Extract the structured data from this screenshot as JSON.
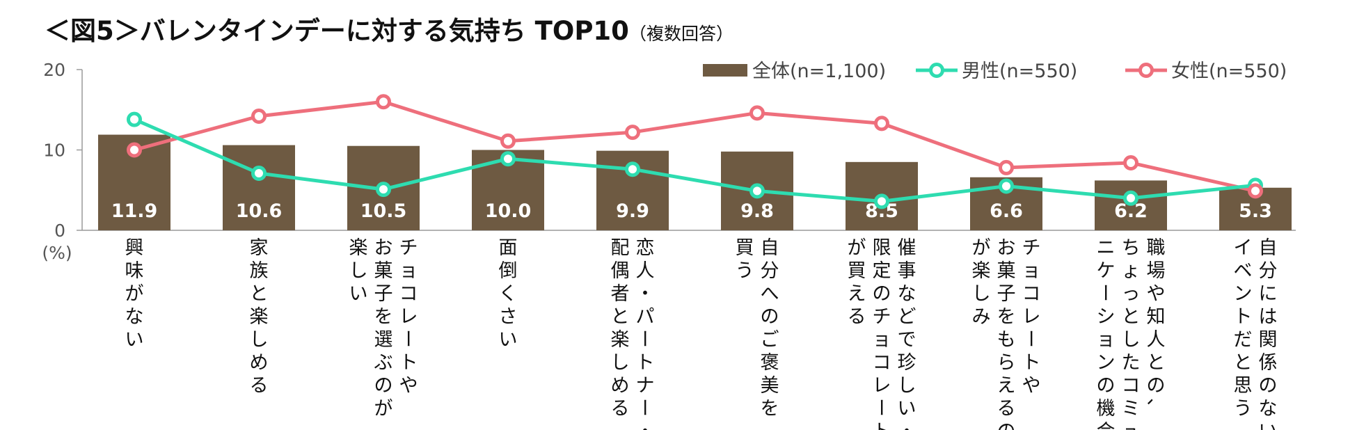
{
  "chart_data": {
    "type": "bar",
    "title": "＜図5＞バレンタインデーに対する気持ち TOP10",
    "subtitle": "（複数回答）",
    "ylabel": "(%)",
    "ylim": [
      0,
      20
    ],
    "yticks": [
      "0",
      "10",
      "20"
    ],
    "categories": [
      "興味がない",
      "家族と楽しめる",
      "チョコレートやお菓子を選ぶのが楽しい",
      "面倒くさい",
      "恋人・パートナー・配偶者と楽しめる",
      "自分へのご褒美を買う",
      "催事などで珍しい・限定のチョコレートが買える",
      "チョコレートやお菓子をもらえるのが楽しみ",
      "職場や知人との、ちょっとしたコミュニケーションの機会",
      "自分には関係のないイベントだと思う"
    ],
    "category_lines": [
      [
        "興味がない"
      ],
      [
        "家族と楽しめる"
      ],
      [
        "チョコレートや",
        "お菓子を選ぶのが",
        "楽しい"
      ],
      [
        "面倒くさい"
      ],
      [
        "恋人・パートナー・",
        "配偶者と楽しめる"
      ],
      [
        "自分へのご褒美を",
        "買う"
      ],
      [
        "催事などで珍しい・",
        "限定のチョコレート",
        "が買える"
      ],
      [
        "チョコレートや",
        "お菓子をもらえるの",
        "が楽しみ"
      ],
      [
        "職場や知人との、",
        "ちょっとしたコミュ",
        "ニケーションの機会"
      ],
      [
        "自分には関係のない",
        "イベントだと思う"
      ]
    ],
    "series": [
      {
        "name": "全体(n=1,100)",
        "kind": "bar",
        "color": "#6e5a42",
        "values": [
          11.9,
          10.6,
          10.5,
          10.0,
          9.9,
          9.8,
          8.5,
          6.6,
          6.2,
          5.3
        ],
        "labels": [
          "11.9",
          "10.6",
          "10.5",
          "10.0",
          "9.9",
          "9.8",
          "8.5",
          "6.6",
          "6.2",
          "5.3"
        ]
      },
      {
        "name": "男性(n=550)",
        "kind": "line",
        "color": "#2edcb0",
        "values": [
          13.8,
          7.1,
          5.1,
          8.9,
          7.6,
          4.9,
          3.6,
          5.5,
          4.0,
          5.6
        ]
      },
      {
        "name": "女性(n=550)",
        "kind": "line",
        "color": "#ee6f7c",
        "values": [
          10.0,
          14.2,
          16.0,
          11.1,
          12.2,
          14.6,
          13.3,
          7.8,
          8.4,
          4.9
        ]
      }
    ],
    "legend_position": "top-right",
    "grid": false
  }
}
